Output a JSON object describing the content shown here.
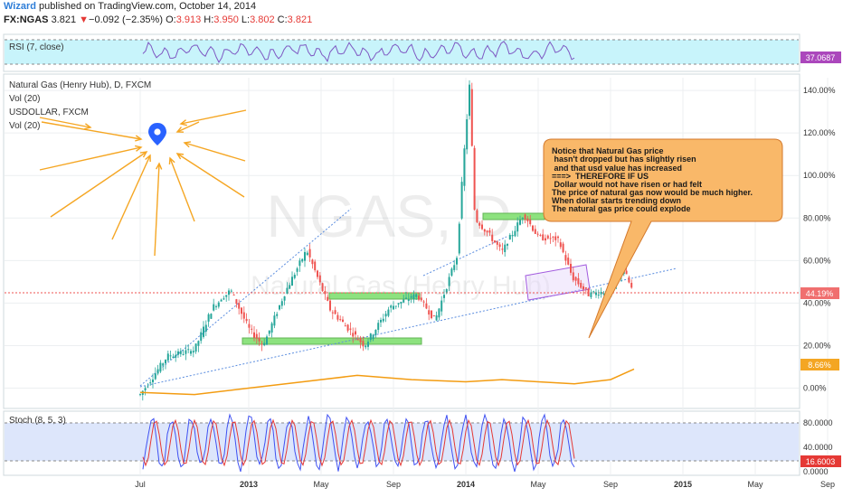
{
  "header": {
    "author": "Wizard",
    "published_text": "published on TradingView.com, October 14, 2014",
    "symbol": "FX:NGAS",
    "last": "3.821",
    "arrow": "▼",
    "change": "−0.092 (−2.35%)",
    "open_label": "O:",
    "open": "3.913",
    "high_label": "H:",
    "high": "3.950",
    "low_label": "L:",
    "low": "3.802",
    "close_label": "C:",
    "close": "3.821"
  },
  "chart_data": {
    "type": "line",
    "panes": {
      "rsi": {
        "label": "RSI (7, close)",
        "last": "37.0687"
      },
      "main": {
        "legend": [
          "Natural Gas (Henry Hub), D, FXCM",
          "Vol (20)",
          "USDOLLAR, FXCM",
          "Vol (20)"
        ],
        "watermark_symbol": "NGAS, D",
        "watermark_name": "Natural Gas (Henry Hub)",
        "y_ticks": [
          "140.00%",
          "120.00%",
          "100.00%",
          "80.00%",
          "60.00%",
          "44.19%",
          "40.00%",
          "20.00%",
          "0.00%"
        ],
        "y_tick_values": [
          140,
          120,
          100,
          80,
          60,
          40,
          20,
          0
        ],
        "y_range": [
          -7,
          146
        ],
        "last_badge": "44.19%",
        "usd_badge": "8.66%",
        "ngas_percent_series": [
          {
            "x": 0,
            "y": -3
          },
          {
            "x": 1.5,
            "y": 15
          },
          {
            "x": 3,
            "y": 18
          },
          {
            "x": 4,
            "y": 38
          },
          {
            "x": 5,
            "y": 46
          },
          {
            "x": 6,
            "y": 28
          },
          {
            "x": 6.8,
            "y": 20
          },
          {
            "x": 8,
            "y": 45
          },
          {
            "x": 9.2,
            "y": 65
          },
          {
            "x": 10.5,
            "y": 37
          },
          {
            "x": 12.4,
            "y": 20
          },
          {
            "x": 13.8,
            "y": 38
          },
          {
            "x": 15.3,
            "y": 44
          },
          {
            "x": 16.3,
            "y": 32
          },
          {
            "x": 17.5,
            "y": 62
          },
          {
            "x": 17.9,
            "y": 110
          },
          {
            "x": 18.2,
            "y": 142
          },
          {
            "x": 18.5,
            "y": 80
          },
          {
            "x": 19.3,
            "y": 72
          },
          {
            "x": 20,
            "y": 64
          },
          {
            "x": 21.2,
            "y": 82
          },
          {
            "x": 22,
            "y": 71
          },
          {
            "x": 23.1,
            "y": 70
          },
          {
            "x": 23.9,
            "y": 52
          },
          {
            "x": 24.8,
            "y": 44
          },
          {
            "x": 26,
            "y": 46
          },
          {
            "x": 26.7,
            "y": 56
          },
          {
            "x": 27.3,
            "y": 44
          }
        ],
        "usd_percent_series": [
          {
            "x": 0,
            "y": -2
          },
          {
            "x": 3,
            "y": -3
          },
          {
            "x": 6,
            "y": 0
          },
          {
            "x": 9,
            "y": 3
          },
          {
            "x": 12,
            "y": 6
          },
          {
            "x": 15,
            "y": 4
          },
          {
            "x": 18,
            "y": 3
          },
          {
            "x": 20,
            "y": 4
          },
          {
            "x": 22,
            "y": 3
          },
          {
            "x": 24,
            "y": 2
          },
          {
            "x": 26,
            "y": 4
          },
          {
            "x": 27.3,
            "y": 9
          }
        ]
      },
      "stoch": {
        "label": "Stoch (8, 5, 3)",
        "y_ticks": [
          "80.0000",
          "40.0000",
          "0.0000"
        ],
        "last": "16.6003"
      }
    },
    "x_ticks": [
      "Jul",
      "2013",
      "May",
      "Sep",
      "2014",
      "May",
      "Sep",
      "2015",
      "May",
      "Sep"
    ],
    "grid": true
  },
  "annotation": {
    "lines": [
      "Notice that Natural Gas price",
      " hasn't dropped but has slightly risen",
      " and that usd value has increased",
      "===>  THEREFORE IF US",
      " Dollar would not have risen or had felt",
      "The price of  natural gas now would be much higher.",
      "When dollar starts trending down",
      "The natural gas price could explode"
    ]
  },
  "colors": {
    "price_up": "#26a69a",
    "price_down": "#ef5350",
    "usd_line": "#f39c12",
    "rsi_line": "#7e57c2",
    "rsi_band": "#c8f4fb",
    "stoch_band": "#dde6fb",
    "stoch_k": "#3f51f2",
    "stoch_d": "#e53935",
    "support_box": "#8de27f",
    "annotation_fill": "#f9b869",
    "annotation_border": "#d4792b",
    "last_badge": "#f06f6f",
    "usd_badge": "#f4a623",
    "rsi_badge": "#ab47bc",
    "arrow": "#f5a623",
    "marker": "#2962ff"
  }
}
